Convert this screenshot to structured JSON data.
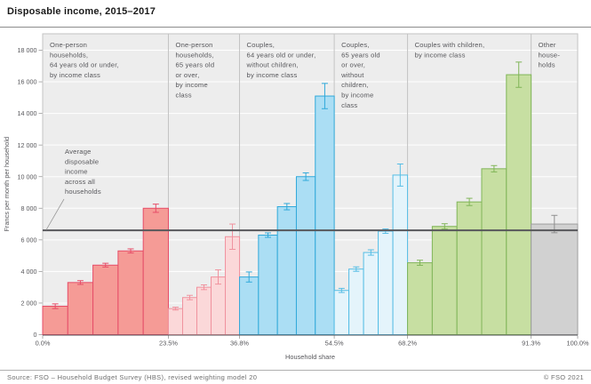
{
  "header": {
    "title": "Disposable income, 2015–2017"
  },
  "footer": {
    "source": "Source: FSO – Household Budget Survey (HBS), revised weighting model 20",
    "copyright": "© FSO 2021"
  },
  "chart_data": {
    "type": "bar",
    "title": "Disposable income, 2015–2017",
    "xlabel": "Household share",
    "ylabel": "Francs per month per household",
    "ylim": [
      0,
      18000
    ],
    "ytick_step": 2000,
    "ytick_labels": [
      "0",
      "2 000",
      "4 000",
      "6 000",
      "8 000",
      "10 000",
      "12 000",
      "14 000",
      "16 000",
      "18 000"
    ],
    "grid": true,
    "legend_position": "none",
    "x_axis_note": "x axis is cumulative share of households, bar width proportional to group share",
    "boundaries_pct": [
      0.0,
      23.5,
      36.8,
      54.5,
      68.2,
      91.3,
      100.0
    ],
    "xtick_labels": [
      "0.0%",
      "23.5%",
      "36.8%",
      "54.5%",
      "68.2%",
      "91.3%",
      "100.0%"
    ],
    "average_line": {
      "value": 6600,
      "color": "#57575b",
      "label": "Average disposable income across all households",
      "label_lines": [
        "Average",
        "disposable",
        "income",
        "across all",
        "households"
      ]
    },
    "colors": {
      "plot_bg": "#ededed",
      "gridline": "#ffffff",
      "separator": "#c3c3c3",
      "axis": "#55555a",
      "tick": "#9a9a9a"
    },
    "groups": [
      {
        "key": "one-person-64-under",
        "label": "One-person households, 64 years old or under, by income class",
        "label_lines": [
          "One-person",
          "households,",
          "64 years old or under,",
          "by income class"
        ],
        "share_from": 0.0,
        "share_to": 23.5,
        "fill": "#f59b96",
        "stroke": "#e64d68",
        "values": [
          1800,
          3300,
          4400,
          5300,
          8000
        ],
        "errors": [
          150,
          120,
          120,
          130,
          260
        ]
      },
      {
        "key": "one-person-65-over",
        "label": "One-person households, 65 years old or over, by income class",
        "label_lines": [
          "One-person",
          "households,",
          "65 years old",
          "or over,",
          "by income",
          "class"
        ],
        "share_from": 23.5,
        "share_to": 36.8,
        "fill": "#fbd8d9",
        "stroke": "#f0929e",
        "values": [
          1650,
          2350,
          3000,
          3650,
          6200
        ],
        "errors": [
          90,
          140,
          150,
          450,
          800
        ]
      },
      {
        "key": "couples-64-under-no-children",
        "label": "Couples, 64 years old or under, without children, by income class",
        "label_lines": [
          "Couples,",
          "64 years old or under,",
          "without children,",
          "by income class"
        ],
        "share_from": 36.8,
        "share_to": 54.5,
        "fill": "#abdef4",
        "stroke": "#31a9da",
        "values": [
          3650,
          6300,
          8100,
          10000,
          15100
        ],
        "errors": [
          320,
          140,
          200,
          240,
          800
        ]
      },
      {
        "key": "couples-65-over-no-children",
        "label": "Couples, 65 years old or over, without children, by income class",
        "label_lines": [
          "Couples,",
          "65 years old",
          "or over,",
          "without",
          "children,",
          "by income",
          "class"
        ],
        "share_from": 54.5,
        "share_to": 68.2,
        "fill": "#e4f4fb",
        "stroke": "#55bde5",
        "values": [
          2800,
          4150,
          5200,
          6550,
          10100
        ],
        "errors": [
          130,
          140,
          170,
          140,
          700
        ]
      },
      {
        "key": "couples-with-children",
        "label": "Couples with children, by income class",
        "label_lines": [
          "Couples with children,",
          "by income class"
        ],
        "share_from": 68.2,
        "share_to": 91.3,
        "fill": "#c7dfa2",
        "stroke": "#80b558",
        "values": [
          4550,
          6850,
          8400,
          10500,
          16450
        ],
        "errors": [
          160,
          170,
          230,
          200,
          800
        ]
      },
      {
        "key": "other-households",
        "label": "Other households",
        "label_lines": [
          "Other",
          "house-",
          "holds"
        ],
        "share_from": 91.3,
        "share_to": 100.0,
        "fill": "#d1d1d1",
        "stroke": "#9e9e9e",
        "error_color": "#8f8f8f",
        "values": [
          7000
        ],
        "errors": [
          550
        ]
      }
    ]
  }
}
